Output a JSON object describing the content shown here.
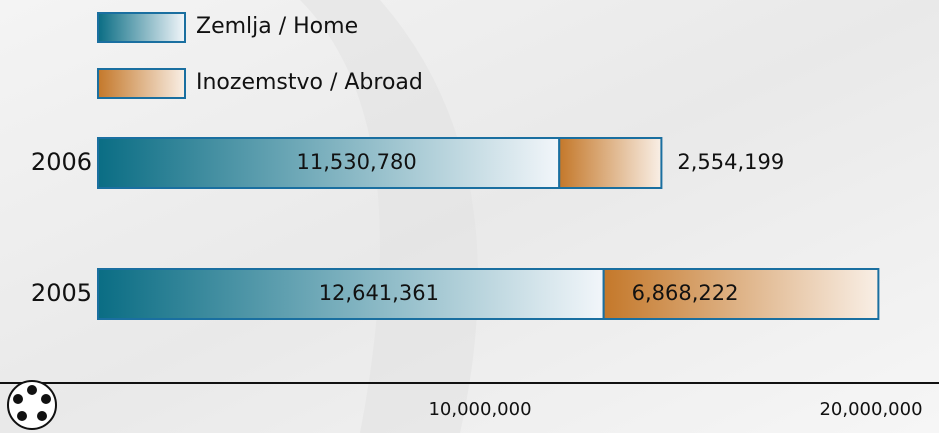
{
  "chart_data": {
    "type": "stacked_barh",
    "categories": [
      "2006",
      "2005"
    ],
    "series": [
      {
        "name": "Zemlja / Home",
        "color": [
          "#0a6d84",
          "#f2f6fa"
        ],
        "values": [
          11530780,
          12641361
        ],
        "value_labels": [
          "11,530,780",
          "12,641,361"
        ]
      },
      {
        "name": "Inozemstvo / Abroad",
        "color": [
          "#c4782a",
          "#f9efe6"
        ],
        "values": [
          2554199,
          6868222
        ],
        "value_labels": [
          "2,554,199",
          "6,868,222"
        ]
      }
    ],
    "xlim": [
      0,
      21000000
    ],
    "xticks": [
      {
        "value": 10000000,
        "label": "10,000,000"
      },
      {
        "value": 20000000,
        "label": "20,000,000"
      }
    ],
    "grid": false
  }
}
